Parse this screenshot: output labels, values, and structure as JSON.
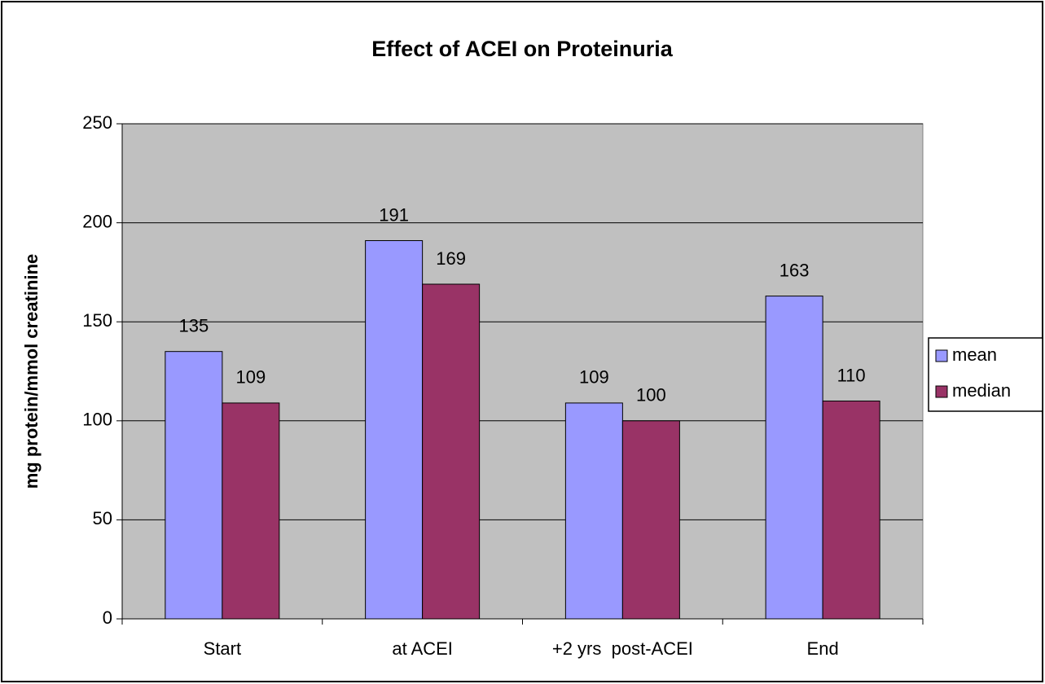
{
  "chart_data": {
    "type": "bar",
    "title": "Effect of ACEI on Proteinuria",
    "y_label": "mg protein/mmol creatinine",
    "categories": [
      "Start",
      "at ACEI",
      "+2 yrs  post-ACEI",
      "End"
    ],
    "series": [
      {
        "name": "mean",
        "color": "#9999ff",
        "values": [
          135,
          191,
          109,
          163
        ]
      },
      {
        "name": "median",
        "color": "#993366",
        "values": [
          109,
          169,
          100,
          110
        ]
      }
    ],
    "ylim": [
      0,
      250
    ],
    "yticks": [
      0,
      50,
      100,
      150,
      200,
      250
    ],
    "grid": true,
    "plot_background": "#c0c0c0",
    "legend": "right"
  }
}
